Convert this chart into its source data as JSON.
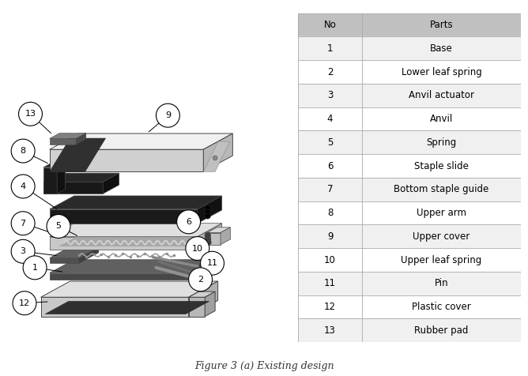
{
  "figure_caption": "Figure 3 (a) Existing design",
  "table_header": [
    "No",
    "Parts"
  ],
  "table_data": [
    [
      1,
      "Base"
    ],
    [
      2,
      "Lower leaf spring"
    ],
    [
      3,
      "Anvil actuator"
    ],
    [
      4,
      "Anvil"
    ],
    [
      5,
      "Spring"
    ],
    [
      6,
      "Staple slide"
    ],
    [
      7,
      "Bottom staple guide"
    ],
    [
      8,
      "Upper arm"
    ],
    [
      9,
      "Upper cover"
    ],
    [
      10,
      "Upper leaf spring"
    ],
    [
      11,
      "Pin"
    ],
    [
      12,
      "Plastic cover"
    ],
    [
      13,
      "Rubber pad"
    ]
  ],
  "header_bg": "#c0c0c0",
  "row_bg_odd": "#f0f0f0",
  "row_bg_even": "#ffffff",
  "table_border_color": "#aaaaaa",
  "bg_color": "#ffffff",
  "font_size_labels": 8,
  "font_size_table": 8.5,
  "font_size_caption": 9
}
